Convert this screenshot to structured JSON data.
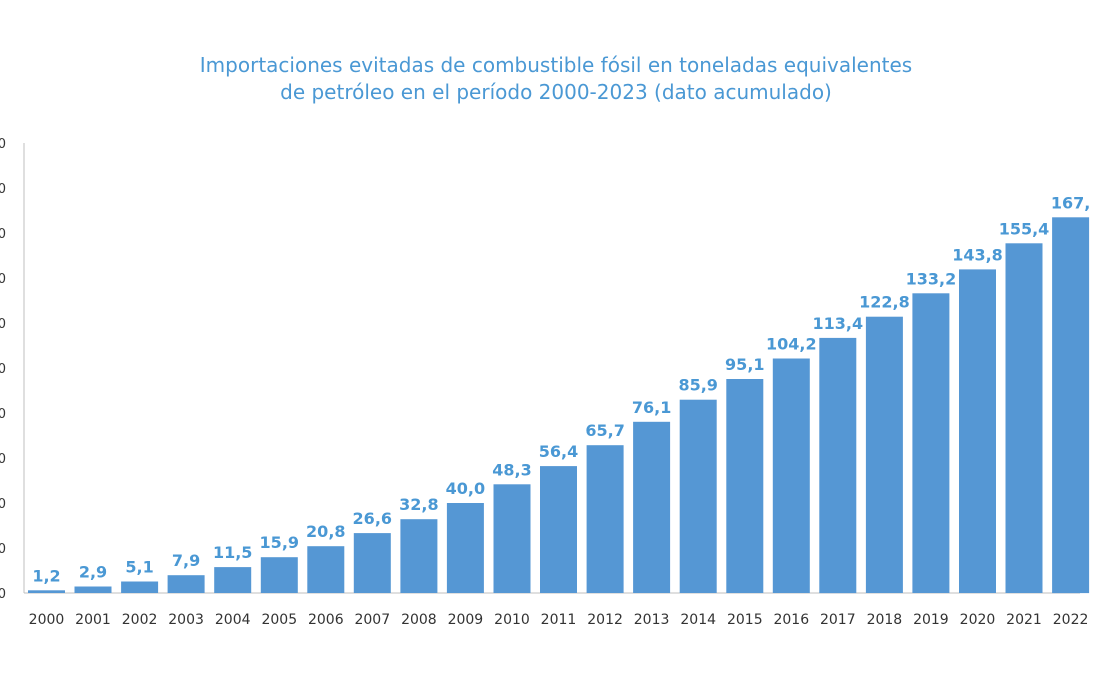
{
  "chart_data": {
    "type": "bar",
    "title_line1": "Importaciones evitadas de combustible fósil en toneladas equivalentes",
    "title_line2": "de petróleo en el período 2000-2023 (dato acumulado)",
    "categories": [
      "2000",
      "2001",
      "2002",
      "2003",
      "2004",
      "2005",
      "2006",
      "2007",
      "2008",
      "2009",
      "2010",
      "2011",
      "2012",
      "2013",
      "2014",
      "2015",
      "2016",
      "2017",
      "2018",
      "2019",
      "2020",
      "2021",
      "2022"
    ],
    "values": [
      1.2,
      2.9,
      5.1,
      7.9,
      11.5,
      15.9,
      20.8,
      26.6,
      32.8,
      40.0,
      48.3,
      56.4,
      65.7,
      76.1,
      85.9,
      95.1,
      104.2,
      113.4,
      122.8,
      133.2,
      143.8,
      155.4,
      167.0
    ],
    "value_labels": [
      "1,2",
      "2,9",
      "5,1",
      "7,9",
      "11,5",
      "15,9",
      "20,8",
      "26,6",
      "32,8",
      "40,0",
      "48,3",
      "56,4",
      "65,7",
      "76,1",
      "85,9",
      "95,1",
      "104,2",
      "113,4",
      "122,8",
      "133,2",
      "143,8",
      "155,4",
      "167,"
    ],
    "y_tick_labels": [
      "0",
      "0",
      "0",
      "0",
      "0",
      "0",
      "0",
      "0",
      "0",
      "0",
      "0"
    ],
    "ylim": [
      0,
      200
    ],
    "bar_color": "#5597d4",
    "label_color": "#4a98d4",
    "grid": false
  }
}
